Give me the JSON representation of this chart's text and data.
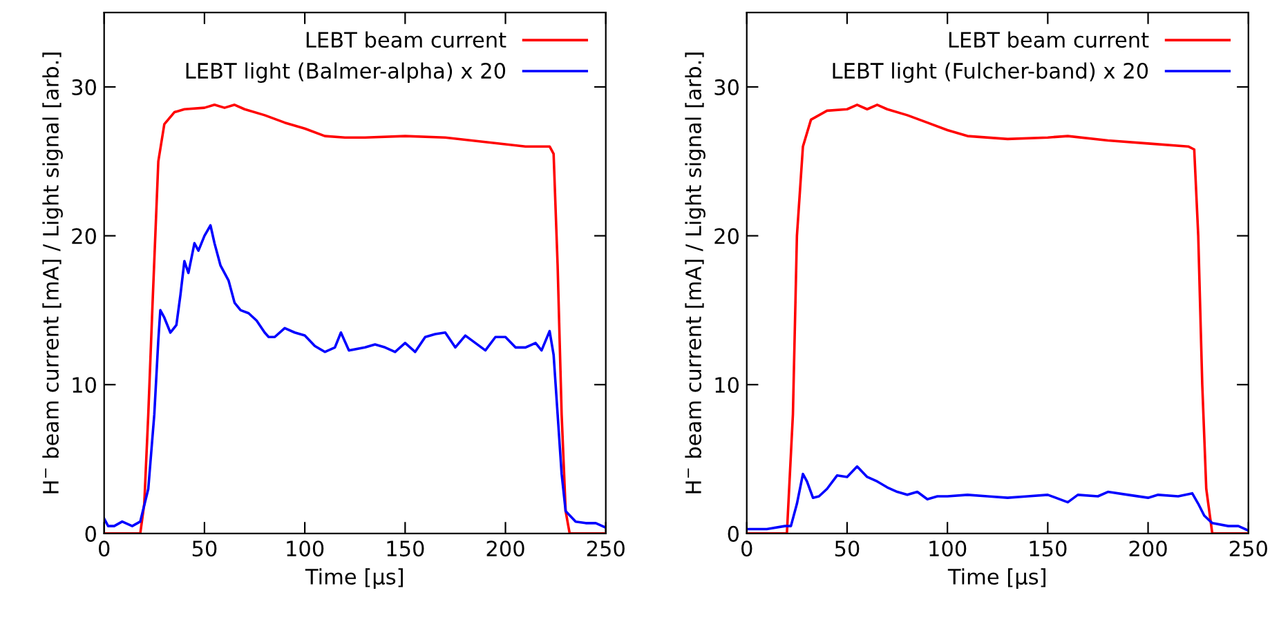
{
  "chart_data": [
    {
      "type": "line",
      "xlabel": "Time [μs]",
      "ylabel": "H$^{−}$ beam current [mA] / Light signal [arb.]",
      "xlim": [
        0,
        250
      ],
      "ylim": [
        0,
        35
      ],
      "xticks": [
        0,
        50,
        100,
        150,
        200,
        250
      ],
      "yticks": [
        0,
        10,
        20,
        30
      ],
      "legend": "top right",
      "grid": false,
      "marker": "none",
      "line_style": "solid",
      "series": [
        {
          "name": "LEBT beam current",
          "color": "#ff0000",
          "x": [
            0,
            18,
            20,
            22,
            24,
            27,
            30,
            35,
            40,
            50,
            55,
            60,
            65,
            70,
            80,
            90,
            100,
            110,
            120,
            130,
            150,
            170,
            190,
            210,
            222,
            224,
            226,
            228,
            230,
            232,
            250
          ],
          "values": [
            0,
            0,
            2,
            8,
            15,
            25,
            27.5,
            28.3,
            28.5,
            28.6,
            28.8,
            28.6,
            28.8,
            28.5,
            28.1,
            27.6,
            27.2,
            26.7,
            26.6,
            26.6,
            26.7,
            26.6,
            26.3,
            26.0,
            26.0,
            25.5,
            18,
            8,
            1.5,
            0,
            0
          ]
        },
        {
          "name": "LEBT light (Balmer-alpha) x 20",
          "color": "#0000ff",
          "x": [
            0,
            2,
            5,
            9,
            14,
            18,
            22,
            25,
            27,
            28,
            30,
            33,
            36,
            38,
            40,
            42,
            45,
            47,
            50,
            53,
            55,
            58,
            62,
            65,
            68,
            72,
            76,
            80,
            82,
            85,
            90,
            95,
            100,
            105,
            110,
            115,
            118,
            122,
            130,
            135,
            140,
            145,
            150,
            155,
            160,
            165,
            170,
            175,
            180,
            185,
            190,
            195,
            200,
            205,
            210,
            215,
            218,
            222,
            224,
            226,
            228,
            230,
            235,
            240,
            245,
            250
          ],
          "values": [
            1.0,
            0.5,
            0.5,
            0.8,
            0.5,
            0.8,
            3,
            8,
            13,
            15,
            14.5,
            13.5,
            14,
            16,
            18.3,
            17.5,
            19.5,
            19.0,
            20,
            20.7,
            19.5,
            18,
            17,
            15.5,
            15,
            14.8,
            14.3,
            13.5,
            13.2,
            13.2,
            13.8,
            13.5,
            13.3,
            12.6,
            12.2,
            12.5,
            13.5,
            12.3,
            12.5,
            12.7,
            12.5,
            12.2,
            12.8,
            12.2,
            13.2,
            13.4,
            13.5,
            12.5,
            13.3,
            12.8,
            12.3,
            13.2,
            13.2,
            12.5,
            12.5,
            12.8,
            12.3,
            13.6,
            12,
            8,
            4,
            1.5,
            0.8,
            0.7,
            0.7,
            0.4
          ]
        }
      ]
    },
    {
      "type": "line",
      "xlabel": "Time [μs]",
      "ylabel": "H$^{−}$ beam current [mA] / Light signal [arb.]",
      "xlim": [
        0,
        250
      ],
      "ylim": [
        0,
        35
      ],
      "xticks": [
        0,
        50,
        100,
        150,
        200,
        250
      ],
      "yticks": [
        0,
        10,
        20,
        30
      ],
      "legend": "top right",
      "grid": false,
      "marker": "none",
      "line_style": "solid",
      "series": [
        {
          "name": "LEBT beam current",
          "color": "#ff0000",
          "x": [
            0,
            20,
            23,
            25,
            28,
            32,
            40,
            50,
            55,
            60,
            65,
            70,
            80,
            90,
            100,
            110,
            130,
            150,
            160,
            180,
            200,
            220,
            223,
            225,
            227,
            229,
            232,
            250
          ],
          "values": [
            0,
            0,
            8,
            20,
            26,
            27.8,
            28.4,
            28.5,
            28.8,
            28.5,
            28.8,
            28.5,
            28.1,
            27.6,
            27.1,
            26.7,
            26.5,
            26.6,
            26.7,
            26.4,
            26.2,
            26.0,
            25.8,
            20,
            10,
            3,
            0,
            0
          ]
        },
        {
          "name": "LEBT light (Fulcher-band) x 20",
          "color": "#0000ff",
          "x": [
            0,
            5,
            10,
            19,
            22,
            25,
            28,
            30,
            33,
            36,
            40,
            45,
            50,
            55,
            60,
            65,
            70,
            75,
            80,
            85,
            90,
            95,
            100,
            110,
            120,
            130,
            140,
            150,
            160,
            165,
            175,
            180,
            190,
            200,
            205,
            215,
            222,
            225,
            228,
            232,
            240,
            245,
            250
          ],
          "values": [
            0.3,
            0.3,
            0.3,
            0.5,
            0.5,
            2,
            4,
            3.5,
            2.4,
            2.5,
            3,
            3.9,
            3.8,
            4.5,
            3.8,
            3.5,
            3.1,
            2.8,
            2.6,
            2.8,
            2.3,
            2.5,
            2.5,
            2.6,
            2.5,
            2.4,
            2.5,
            2.6,
            2.1,
            2.6,
            2.5,
            2.8,
            2.6,
            2.4,
            2.6,
            2.5,
            2.7,
            2.0,
            1.2,
            0.7,
            0.5,
            0.5,
            0.2
          ]
        }
      ]
    }
  ]
}
